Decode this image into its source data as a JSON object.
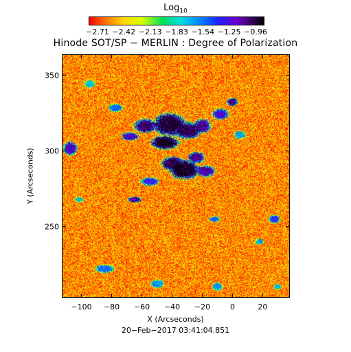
{
  "colorbar": {
    "title": "Log",
    "title_sub": "10",
    "ticks": [
      "−2.71",
      "−2.42",
      "−2.13",
      "−1.83",
      "−1.54",
      "−1.25",
      "−0.96"
    ],
    "gradient_colors": [
      "#ff0000",
      "#ff7a00",
      "#ffd800",
      "#d8ff00",
      "#00e05a",
      "#00e0e0",
      "#0080ff",
      "#2020ff",
      "#6a00d0",
      "#3a0060",
      "#000000"
    ]
  },
  "chart_data": {
    "type": "heatmap",
    "title": "Hinode SOT/SP − MERLIN : Degree of Polarization",
    "xlabel": "X (Arcseconds)",
    "ylabel": "Y (Arcseconds)",
    "xlim": [
      -113,
      38
    ],
    "ylim": [
      203,
      364
    ],
    "xticks": [
      -100,
      -80,
      -60,
      -40,
      -20,
      0,
      20
    ],
    "yticks": [
      250,
      300,
      350
    ],
    "value_range": [
      -2.71,
      -0.96
    ],
    "value_scale": "log10",
    "background_value": -2.5,
    "features": [
      {
        "x": -42,
        "y": 318,
        "rx": 12,
        "ry": 8,
        "value": -1.05
      },
      {
        "x": -45,
        "y": 306,
        "rx": 10,
        "ry": 5,
        "value": -1.0
      },
      {
        "x": -30,
        "y": 314,
        "rx": 10,
        "ry": 6,
        "value": -1.1
      },
      {
        "x": -58,
        "y": 317,
        "rx": 8,
        "ry": 5,
        "value": -1.15
      },
      {
        "x": -68,
        "y": 310,
        "rx": 6,
        "ry": 3,
        "value": -1.3
      },
      {
        "x": -20,
        "y": 317,
        "rx": 6,
        "ry": 5,
        "value": -1.2
      },
      {
        "x": -32,
        "y": 288,
        "rx": 11,
        "ry": 7,
        "value": -1.0
      },
      {
        "x": -40,
        "y": 292,
        "rx": 8,
        "ry": 5,
        "value": -1.1
      },
      {
        "x": -18,
        "y": 287,
        "rx": 7,
        "ry": 4,
        "value": -1.25
      },
      {
        "x": -24,
        "y": 296,
        "rx": 6,
        "ry": 4,
        "value": -1.2
      },
      {
        "x": -55,
        "y": 280,
        "rx": 7,
        "ry": 3,
        "value": -1.45
      },
      {
        "x": -65,
        "y": 268,
        "rx": 5,
        "ry": 2,
        "value": -1.2
      },
      {
        "x": -108,
        "y": 302,
        "rx": 5,
        "ry": 5,
        "value": -1.3
      },
      {
        "x": -8,
        "y": 325,
        "rx": 6,
        "ry": 4,
        "value": -1.35
      },
      {
        "x": 0,
        "y": 333,
        "rx": 4,
        "ry": 3,
        "value": -1.2
      },
      {
        "x": -78,
        "y": 329,
        "rx": 5,
        "ry": 3,
        "value": -1.6
      },
      {
        "x": 5,
        "y": 311,
        "rx": 4,
        "ry": 3,
        "value": -1.7
      },
      {
        "x": -85,
        "y": 222,
        "rx": 7,
        "ry": 3,
        "value": -1.6
      },
      {
        "x": -50,
        "y": 212,
        "rx": 5,
        "ry": 3,
        "value": -1.7
      },
      {
        "x": 28,
        "y": 255,
        "rx": 4,
        "ry": 3,
        "value": -1.5
      },
      {
        "x": -10,
        "y": 210,
        "rx": 4,
        "ry": 3,
        "value": -1.7
      },
      {
        "x": -95,
        "y": 345,
        "rx": 4,
        "ry": 3,
        "value": -1.8
      },
      {
        "x": -12,
        "y": 255,
        "rx": 4,
        "ry": 2,
        "value": -1.6
      },
      {
        "x": 18,
        "y": 240,
        "rx": 3,
        "ry": 2,
        "value": -1.7
      },
      {
        "x": -102,
        "y": 268,
        "rx": 3,
        "ry": 2,
        "value": -1.8
      },
      {
        "x": 30,
        "y": 210,
        "rx": 3,
        "ry": 2,
        "value": -1.8
      }
    ]
  },
  "footer": "20−Feb−2017 03:41:04.851"
}
